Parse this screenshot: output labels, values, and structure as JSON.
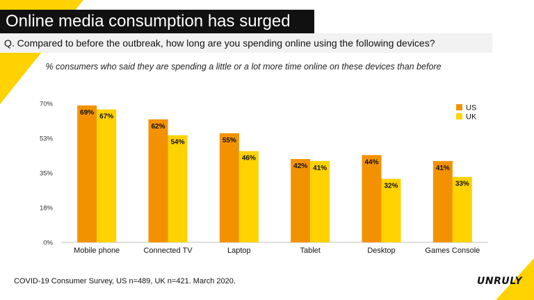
{
  "slide": {
    "title": "Online media consumption has surged",
    "question": "Q. Compared to before the outbreak, how long are you spending online using the following devices?",
    "subtitle": "% consumers who said they are spending a little or a lot more time online on these devices than before",
    "footer": "COVID-19 Consumer Survey, US n=489, UK n=421. March 2020.",
    "brand": "UNRULY"
  },
  "colors": {
    "us": "#f39200",
    "uk": "#ffd200",
    "accent": "#ffd200",
    "title_bg": "#111111"
  },
  "chart_data": {
    "type": "bar",
    "title": "",
    "xlabel": "",
    "ylabel": "",
    "categories": [
      "Mobile phone",
      "Connected TV",
      "Laptop",
      "Tablet",
      "Desktop",
      "Games Console"
    ],
    "series": [
      {
        "name": "US",
        "values": [
          69,
          62,
          55,
          42,
          44,
          41
        ],
        "labels": [
          "69%",
          "62%",
          "55%",
          "42%",
          "44%",
          "41%"
        ]
      },
      {
        "name": "UK",
        "values": [
          67,
          54,
          46,
          41,
          32,
          33
        ],
        "labels": [
          "67%",
          "54%",
          "46%",
          "41%",
          "32%",
          "33%"
        ]
      }
    ],
    "ylim": [
      0,
      70
    ],
    "yticks": [
      0,
      17.5,
      35,
      52.5,
      70
    ],
    "ytick_labels": [
      "0%",
      "18%",
      "35%",
      "53%",
      "70%"
    ],
    "grid": false,
    "legend": "top-right"
  }
}
